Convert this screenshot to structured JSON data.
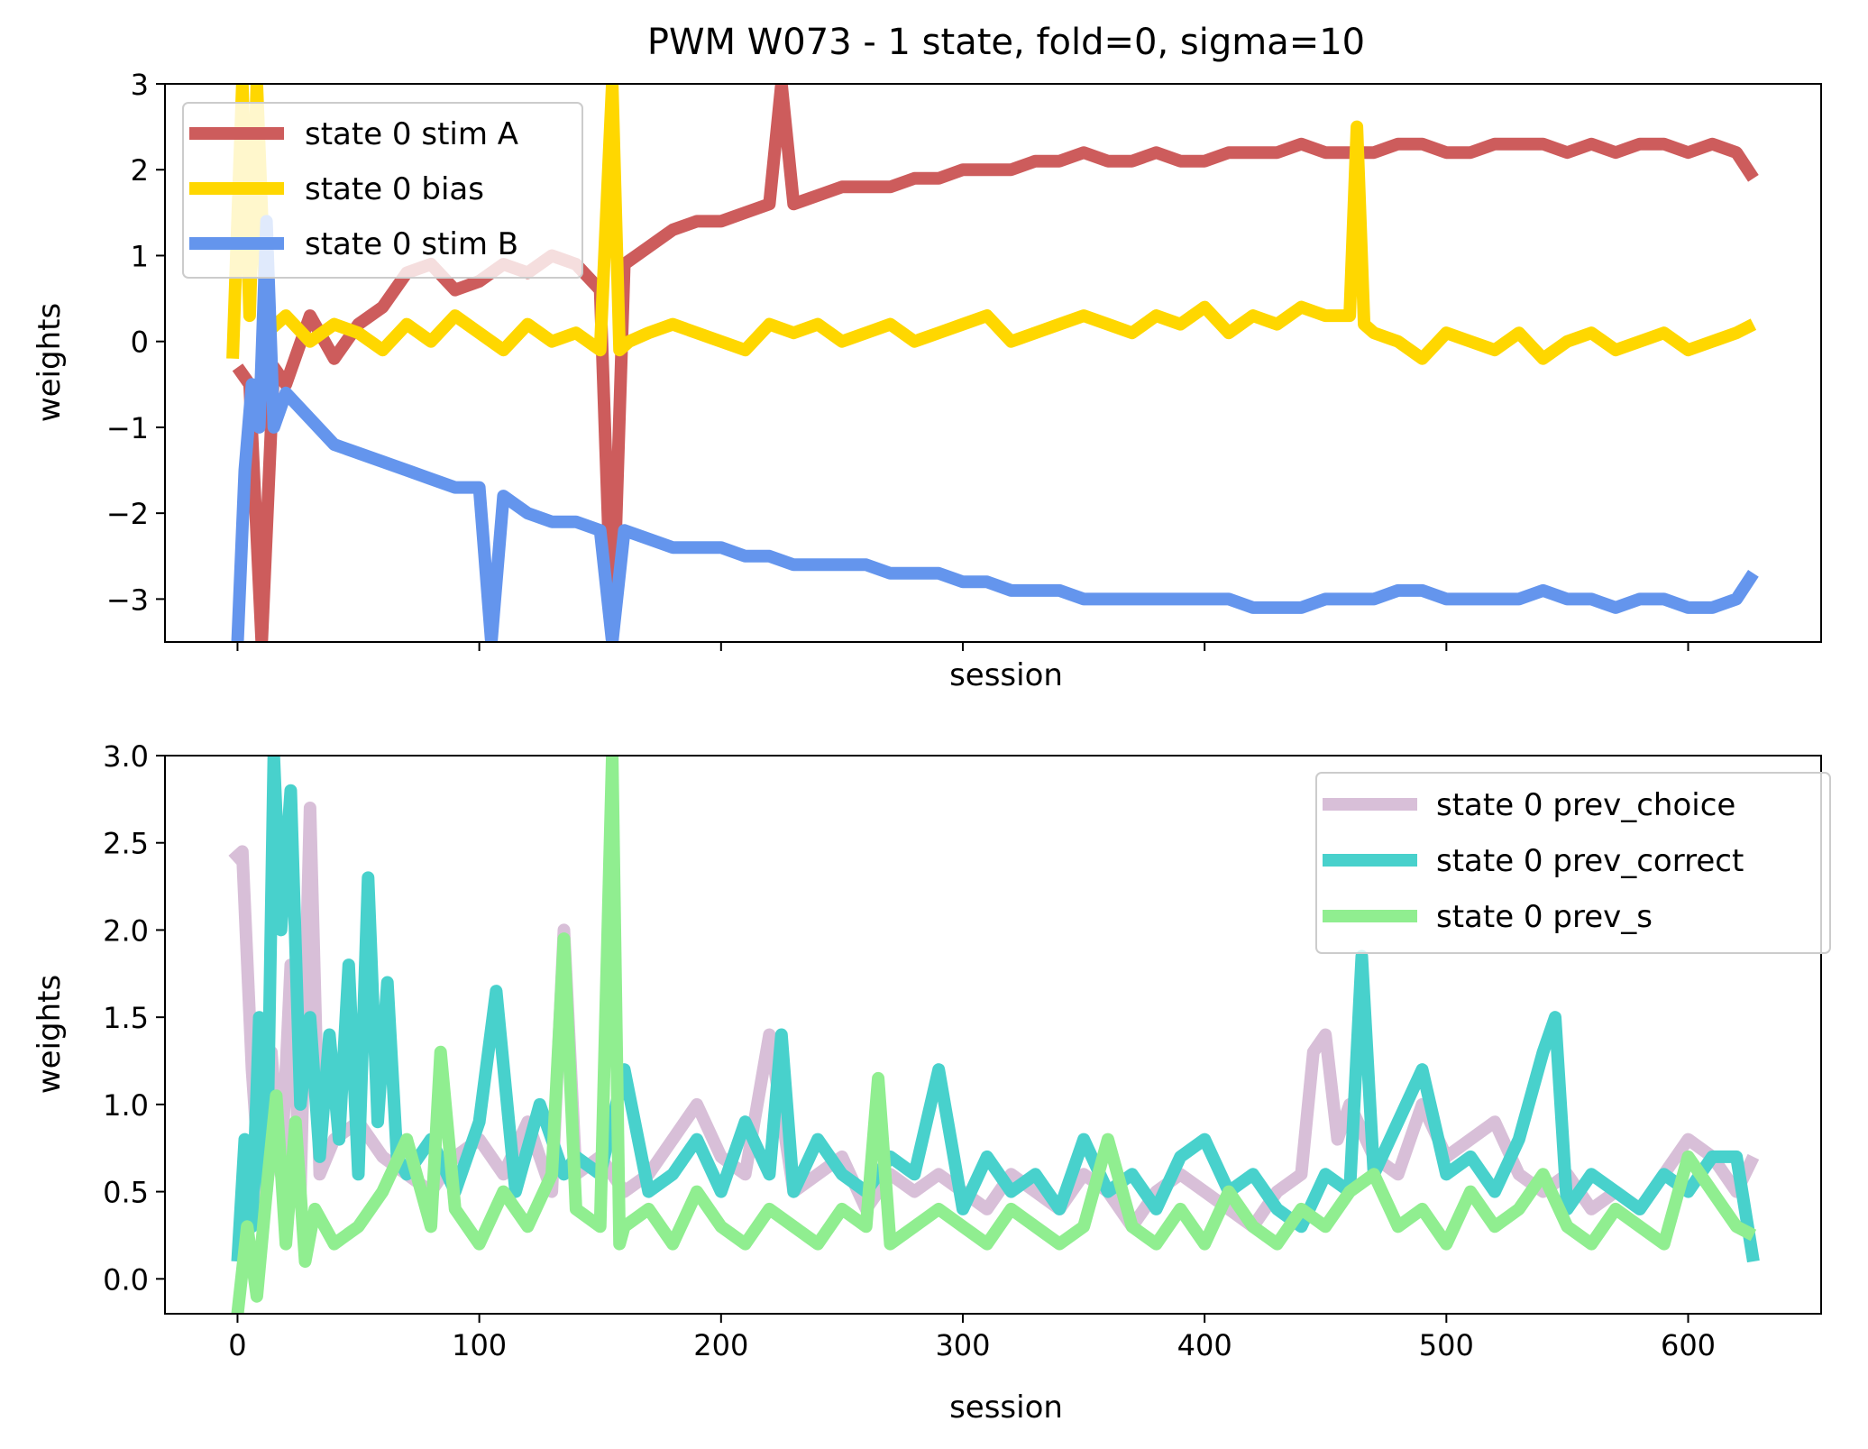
{
  "title": "PWM W073 - 1 state, fold=0, sigma=10",
  "colors": {
    "stim_A": "#cd5c5c",
    "bias": "#ffd700",
    "stim_B": "#6495ed",
    "prev_choice": "#d8bfd8",
    "prev_correct": "#48d1cc",
    "prev_s": "#90ee90"
  },
  "chart_data": [
    {
      "type": "line",
      "xlabel": "session",
      "ylabel": "weights",
      "xlim": [
        -30,
        655
      ],
      "ylim": [
        -3.5,
        3
      ],
      "xticks": [
        0,
        100,
        200,
        300,
        400,
        500,
        600
      ],
      "xtick_labels_shown": false,
      "yticks": [
        -3,
        -2,
        -1,
        0,
        1,
        2,
        3
      ],
      "ytick_labels": [
        "−3",
        "−2",
        "−1",
        "0",
        "1",
        "2",
        "3"
      ],
      "grid": false,
      "legend_position": "top-left",
      "series": [
        {
          "name": "state 0 stim A",
          "color_key": "stim_A",
          "x": [
            0,
            5,
            10,
            15,
            20,
            30,
            40,
            50,
            60,
            70,
            80,
            90,
            100,
            110,
            120,
            130,
            140,
            150,
            155,
            160,
            170,
            180,
            190,
            200,
            210,
            220,
            225,
            230,
            240,
            250,
            260,
            270,
            280,
            290,
            300,
            310,
            320,
            330,
            340,
            350,
            360,
            370,
            380,
            390,
            400,
            410,
            420,
            430,
            440,
            450,
            460,
            470,
            480,
            490,
            500,
            510,
            520,
            530,
            540,
            550,
            560,
            570,
            580,
            590,
            600,
            610,
            620,
            627
          ],
          "values": [
            -0.3,
            -0.5,
            -3.5,
            -0.3,
            -0.5,
            0.3,
            -0.2,
            0.2,
            0.4,
            0.8,
            0.9,
            0.6,
            0.7,
            0.9,
            0.8,
            1.0,
            0.9,
            0.6,
            -3.5,
            0.9,
            1.1,
            1.3,
            1.4,
            1.4,
            1.5,
            1.6,
            3.0,
            1.6,
            1.7,
            1.8,
            1.8,
            1.8,
            1.9,
            1.9,
            2.0,
            2.0,
            2.0,
            2.1,
            2.1,
            2.2,
            2.1,
            2.1,
            2.2,
            2.1,
            2.1,
            2.2,
            2.2,
            2.2,
            2.3,
            2.2,
            2.2,
            2.2,
            2.3,
            2.3,
            2.2,
            2.2,
            2.3,
            2.3,
            2.3,
            2.2,
            2.3,
            2.2,
            2.3,
            2.3,
            2.2,
            2.3,
            2.2,
            1.9
          ]
        },
        {
          "name": "state 0 bias",
          "color_key": "bias",
          "x": [
            -2,
            2,
            5,
            8,
            12,
            20,
            30,
            40,
            50,
            60,
            70,
            80,
            90,
            100,
            110,
            120,
            130,
            140,
            150,
            155,
            158,
            162,
            170,
            180,
            190,
            200,
            210,
            220,
            230,
            240,
            250,
            260,
            270,
            280,
            290,
            300,
            310,
            320,
            330,
            340,
            350,
            360,
            370,
            380,
            390,
            400,
            410,
            420,
            430,
            440,
            450,
            460,
            463,
            466,
            470,
            480,
            490,
            500,
            510,
            520,
            530,
            540,
            550,
            560,
            570,
            580,
            590,
            600,
            610,
            620,
            627
          ],
          "values": [
            -0.2,
            3.0,
            0.3,
            3.0,
            0.1,
            0.3,
            0.0,
            0.2,
            0.1,
            -0.1,
            0.2,
            0.0,
            0.3,
            0.1,
            -0.1,
            0.2,
            0.0,
            0.1,
            -0.1,
            3.0,
            -0.1,
            0.0,
            0.1,
            0.2,
            0.1,
            0.0,
            -0.1,
            0.2,
            0.1,
            0.2,
            0.0,
            0.1,
            0.2,
            0.0,
            0.1,
            0.2,
            0.3,
            0.0,
            0.1,
            0.2,
            0.3,
            0.2,
            0.1,
            0.3,
            0.2,
            0.4,
            0.1,
            0.3,
            0.2,
            0.4,
            0.3,
            0.3,
            2.5,
            0.2,
            0.1,
            0.0,
            -0.2,
            0.1,
            0.0,
            -0.1,
            0.1,
            -0.2,
            0.0,
            0.1,
            -0.1,
            0.0,
            0.1,
            -0.1,
            0.0,
            0.1,
            0.2
          ]
        },
        {
          "name": "state 0 stim B",
          "color_key": "stim_B",
          "x": [
            0,
            3,
            6,
            9,
            12,
            15,
            20,
            30,
            40,
            50,
            60,
            70,
            80,
            90,
            100,
            105,
            110,
            120,
            130,
            140,
            150,
            155,
            160,
            170,
            180,
            190,
            200,
            210,
            220,
            230,
            240,
            250,
            260,
            270,
            280,
            290,
            300,
            310,
            320,
            330,
            340,
            350,
            360,
            370,
            380,
            390,
            400,
            410,
            420,
            430,
            440,
            450,
            460,
            470,
            480,
            490,
            500,
            510,
            520,
            530,
            540,
            550,
            560,
            570,
            580,
            590,
            600,
            610,
            620,
            627
          ],
          "values": [
            -3.5,
            -1.5,
            -0.5,
            -1.0,
            1.4,
            -1.0,
            -0.6,
            -0.9,
            -1.2,
            -1.3,
            -1.4,
            -1.5,
            -1.6,
            -1.7,
            -1.7,
            -3.5,
            -1.8,
            -2.0,
            -2.1,
            -2.1,
            -2.2,
            -3.5,
            -2.2,
            -2.3,
            -2.4,
            -2.4,
            -2.4,
            -2.5,
            -2.5,
            -2.6,
            -2.6,
            -2.6,
            -2.6,
            -2.7,
            -2.7,
            -2.7,
            -2.8,
            -2.8,
            -2.9,
            -2.9,
            -2.9,
            -3.0,
            -3.0,
            -3.0,
            -3.0,
            -3.0,
            -3.0,
            -3.0,
            -3.1,
            -3.1,
            -3.1,
            -3.0,
            -3.0,
            -3.0,
            -2.9,
            -2.9,
            -3.0,
            -3.0,
            -3.0,
            -3.0,
            -2.9,
            -3.0,
            -3.0,
            -3.1,
            -3.0,
            -3.0,
            -3.1,
            -3.1,
            -3.0,
            -2.7
          ]
        }
      ]
    },
    {
      "type": "line",
      "xlabel": "session",
      "ylabel": "weights",
      "xlim": [
        -30,
        655
      ],
      "ylim": [
        -0.2,
        3.0
      ],
      "xticks": [
        0,
        100,
        200,
        300,
        400,
        500,
        600
      ],
      "xtick_labels": [
        "0",
        "100",
        "200",
        "300",
        "400",
        "500",
        "600"
      ],
      "yticks": [
        0.0,
        0.5,
        1.0,
        1.5,
        2.0,
        2.5,
        3.0
      ],
      "ytick_labels": [
        "0.0",
        "0.5",
        "1.0",
        "1.5",
        "2.0",
        "2.5",
        "3.0"
      ],
      "grid": false,
      "legend_position": "top-right",
      "series": [
        {
          "name": "state 0 prev_choice",
          "color_key": "prev_choice",
          "x": [
            -2,
            2,
            6,
            10,
            14,
            18,
            22,
            26,
            30,
            34,
            40,
            50,
            60,
            70,
            80,
            90,
            100,
            110,
            120,
            130,
            135,
            140,
            150,
            160,
            170,
            180,
            190,
            200,
            210,
            220,
            230,
            240,
            250,
            260,
            270,
            280,
            290,
            300,
            310,
            320,
            330,
            340,
            350,
            360,
            370,
            380,
            390,
            400,
            410,
            420,
            430,
            440,
            445,
            450,
            455,
            460,
            470,
            480,
            490,
            500,
            510,
            520,
            530,
            540,
            550,
            560,
            570,
            580,
            590,
            600,
            610,
            620,
            627
          ],
          "values": [
            2.4,
            2.45,
            1.2,
            0.4,
            1.3,
            0.6,
            1.8,
            0.5,
            2.7,
            0.6,
            0.8,
            0.9,
            0.7,
            0.6,
            0.5,
            0.7,
            0.8,
            0.6,
            0.9,
            0.5,
            2.0,
            0.6,
            0.7,
            0.5,
            0.6,
            0.8,
            1.0,
            0.7,
            0.6,
            1.4,
            0.5,
            0.6,
            0.7,
            0.4,
            0.6,
            0.5,
            0.6,
            0.5,
            0.4,
            0.6,
            0.5,
            0.4,
            0.6,
            0.5,
            0.3,
            0.5,
            0.6,
            0.5,
            0.4,
            0.3,
            0.5,
            0.6,
            1.3,
            1.4,
            0.8,
            1.0,
            0.7,
            0.6,
            1.0,
            0.7,
            0.8,
            0.9,
            0.6,
            0.5,
            0.6,
            0.4,
            0.5,
            0.4,
            0.6,
            0.8,
            0.7,
            0.5,
            0.7
          ]
        },
        {
          "name": "state 0 prev_correct",
          "color_key": "prev_correct",
          "x": [
            0,
            3,
            6,
            9,
            12,
            15,
            18,
            22,
            26,
            30,
            34,
            38,
            42,
            46,
            50,
            54,
            58,
            62,
            66,
            70,
            80,
            90,
            100,
            107,
            115,
            125,
            135,
            140,
            150,
            160,
            170,
            180,
            190,
            200,
            210,
            220,
            225,
            230,
            240,
            250,
            260,
            270,
            280,
            290,
            300,
            310,
            320,
            330,
            340,
            350,
            360,
            370,
            380,
            390,
            400,
            410,
            420,
            430,
            440,
            450,
            460,
            465,
            470,
            480,
            490,
            500,
            510,
            520,
            530,
            540,
            545,
            550,
            560,
            570,
            580,
            590,
            600,
            610,
            620,
            627
          ],
          "values": [
            0.1,
            0.8,
            0.3,
            1.5,
            0.5,
            3.0,
            2.0,
            2.8,
            1.0,
            1.5,
            0.7,
            1.4,
            0.8,
            1.8,
            0.6,
            2.3,
            0.9,
            1.7,
            0.7,
            0.6,
            0.8,
            0.5,
            0.9,
            1.65,
            0.5,
            1.0,
            0.6,
            0.7,
            0.6,
            1.2,
            0.5,
            0.6,
            0.8,
            0.5,
            0.9,
            0.6,
            1.4,
            0.5,
            0.8,
            0.6,
            0.5,
            0.7,
            0.6,
            1.2,
            0.4,
            0.7,
            0.5,
            0.6,
            0.4,
            0.8,
            0.5,
            0.6,
            0.4,
            0.7,
            0.8,
            0.5,
            0.6,
            0.4,
            0.3,
            0.6,
            0.5,
            1.85,
            0.6,
            0.9,
            1.2,
            0.6,
            0.7,
            0.5,
            0.8,
            1.3,
            1.5,
            0.4,
            0.6,
            0.5,
            0.4,
            0.6,
            0.5,
            0.7,
            0.7,
            0.1
          ]
        },
        {
          "name": "state 0 prev_s",
          "color_key": "prev_s",
          "x": [
            0,
            4,
            8,
            12,
            16,
            20,
            24,
            28,
            32,
            40,
            50,
            60,
            70,
            80,
            84,
            90,
            100,
            110,
            120,
            130,
            135,
            140,
            150,
            155,
            158,
            160,
            170,
            180,
            190,
            200,
            210,
            220,
            230,
            240,
            250,
            260,
            265,
            270,
            280,
            290,
            300,
            310,
            320,
            330,
            340,
            350,
            360,
            370,
            380,
            390,
            400,
            410,
            420,
            430,
            440,
            450,
            460,
            470,
            480,
            490,
            500,
            510,
            520,
            530,
            540,
            550,
            560,
            570,
            580,
            590,
            600,
            610,
            620,
            627
          ],
          "values": [
            -0.2,
            0.3,
            -0.1,
            0.5,
            1.05,
            0.2,
            0.9,
            0.1,
            0.4,
            0.2,
            0.3,
            0.5,
            0.8,
            0.3,
            1.3,
            0.4,
            0.2,
            0.5,
            0.3,
            0.6,
            1.95,
            0.4,
            0.3,
            3.0,
            0.2,
            0.3,
            0.4,
            0.2,
            0.5,
            0.3,
            0.2,
            0.4,
            0.3,
            0.2,
            0.4,
            0.3,
            1.15,
            0.2,
            0.3,
            0.4,
            0.3,
            0.2,
            0.4,
            0.3,
            0.2,
            0.3,
            0.8,
            0.3,
            0.2,
            0.4,
            0.2,
            0.5,
            0.3,
            0.2,
            0.4,
            0.3,
            0.5,
            0.6,
            0.3,
            0.4,
            0.2,
            0.5,
            0.3,
            0.4,
            0.6,
            0.3,
            0.2,
            0.4,
            0.3,
            0.2,
            0.7,
            0.5,
            0.3,
            0.25
          ]
        }
      ]
    }
  ]
}
